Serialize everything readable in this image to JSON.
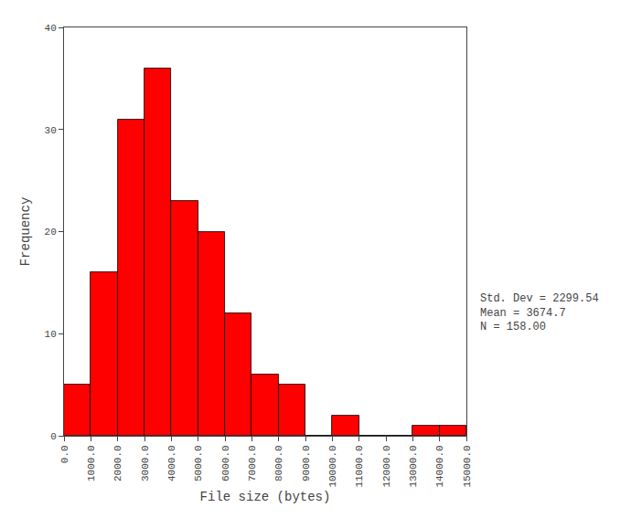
{
  "chart_data": {
    "type": "histogram",
    "bins": [
      0,
      1000,
      2000,
      3000,
      4000,
      5000,
      6000,
      7000,
      8000,
      9000,
      10000,
      11000,
      12000,
      13000,
      14000,
      15000
    ],
    "values": [
      5,
      16,
      31,
      36,
      23,
      20,
      12,
      6,
      5,
      0,
      2,
      0,
      0,
      1,
      1
    ],
    "color": "#FF0000",
    "xlabel": "File size (bytes)",
    "ylabel": "Frequency",
    "xlim": [
      0,
      15000
    ],
    "ylim": [
      0,
      40
    ],
    "xticks": [
      {
        "value": 0,
        "label": "0.0"
      },
      {
        "value": 1000,
        "label": "1000.0"
      },
      {
        "value": 2000,
        "label": "2000.0"
      },
      {
        "value": 3000,
        "label": "3000.0"
      },
      {
        "value": 4000,
        "label": "4000.0"
      },
      {
        "value": 5000,
        "label": "5000.0"
      },
      {
        "value": 6000,
        "label": "6000.0"
      },
      {
        "value": 7000,
        "label": "7000.0"
      },
      {
        "value": 8000,
        "label": "8000.0"
      },
      {
        "value": 9000,
        "label": "9000.0"
      },
      {
        "value": 10000,
        "label": "10000.0"
      },
      {
        "value": 11000,
        "label": "11000.0"
      },
      {
        "value": 12000,
        "label": "12000.0"
      },
      {
        "value": 13000,
        "label": "13000.0"
      },
      {
        "value": 14000,
        "label": "14000.0"
      },
      {
        "value": 15000,
        "label": "15000.0"
      }
    ],
    "yticks": [
      0,
      10,
      20,
      30,
      40
    ],
    "annotations": [
      "Std. Dev = 2299.54",
      "Mean = 3674.7",
      "N = 158.00"
    ],
    "grid": false
  }
}
